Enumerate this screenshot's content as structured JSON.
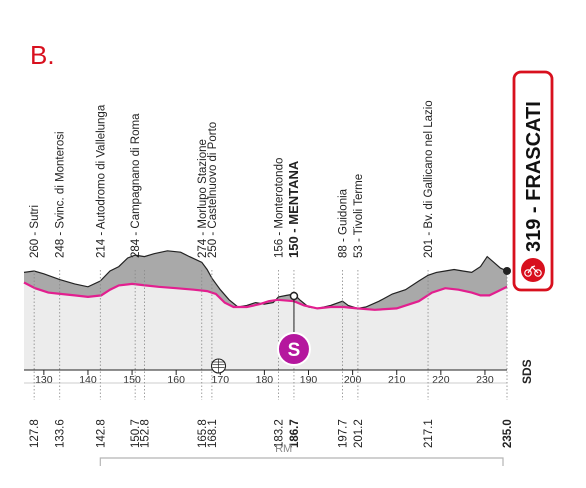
{
  "panel_label": "B.",
  "finish": {
    "altitude": "319",
    "name": "FRASCATI",
    "label": "319 - FRASCATI",
    "color": "#d8101e"
  },
  "colors": {
    "profile_fill": "#a9a9a9",
    "profile_fill_light": "#ececec",
    "route_line": "#e21f8f",
    "sprint_badge": "#b5179e",
    "finish_accent": "#d8101e"
  },
  "sprint_badge_letter": "S",
  "sds_label": "SDS",
  "province_label": "RM",
  "chart_data": {
    "type": "area",
    "title": "",
    "xlabel": "",
    "ylabel": "",
    "xlim": [
      125.5,
      235.0
    ],
    "x_ticks": [
      130,
      140,
      150,
      160,
      170,
      180,
      190,
      200,
      210,
      220,
      230
    ],
    "waypoints": [
      {
        "km": "127.8",
        "alt": "260",
        "name": "Sutri",
        "label": "260 - Sutri",
        "x": 127.8,
        "bold": false
      },
      {
        "km": "133.6",
        "alt": "248",
        "name": "Svinc. di Monterosi",
        "label": "248 - Svinc. di Monterosi",
        "x": 133.6,
        "bold": false
      },
      {
        "km": "142.8",
        "alt": "214",
        "name": "Autodromo di Vallelunga",
        "label": "214 - Autodromo di Vallelunga",
        "x": 142.8,
        "bold": false
      },
      {
        "km": "150.7",
        "alt": "284",
        "name": "Campagnano di Roma",
        "label": "284 - Campagnano di Roma",
        "x": 150.7,
        "bold": false
      },
      {
        "km": "152.8",
        "alt": "",
        "name": "",
        "label": "",
        "x": 152.8,
        "bold": false
      },
      {
        "km": "165.8",
        "alt": "274",
        "name": "Morlupo Stazione",
        "label": "274 - Morlupo Stazione",
        "x": 165.8,
        "bold": false
      },
      {
        "km": "168.1",
        "alt": "250",
        "name": "Castelnuovo di Porto",
        "label": "250 - Castelnuovo di Porto",
        "x": 168.1,
        "bold": false
      },
      {
        "km": "183.2",
        "alt": "156",
        "name": "Monterotondo",
        "label": "156 - Monterotondo",
        "x": 183.2,
        "bold": false
      },
      {
        "km": "186.7",
        "alt": "150",
        "name": "MENTANA",
        "label": "150 - MENTANA",
        "x": 186.7,
        "bold": true
      },
      {
        "km": "197.7",
        "alt": "88",
        "name": "Guidonia",
        "label": "88 - Guidonia",
        "x": 197.7,
        "bold": false
      },
      {
        "km": "201.2",
        "alt": "53",
        "name": "Tivoli Terme",
        "label": "53 - Tivoli Terme",
        "x": 201.2,
        "bold": false
      },
      {
        "km": "217.1",
        "alt": "201",
        "name": "Bv. di Gallicano nel Lazio",
        "label": "201 - Bv. di Gallicano nel Lazio",
        "x": 217.1,
        "bold": false
      },
      {
        "km": "235.0",
        "alt": "319",
        "name": "FRASCATI",
        "label": "",
        "x": 235.0,
        "bold": true
      }
    ],
    "series": [
      {
        "values": [
          [
            125.5,
            260
          ],
          [
            127.8,
            262
          ],
          [
            130,
            258
          ],
          [
            133.6,
            250
          ],
          [
            137,
            244
          ],
          [
            140,
            240
          ],
          [
            142.8,
            248
          ],
          [
            145,
            262
          ],
          [
            147,
            268
          ],
          [
            149,
            280
          ],
          [
            150.7,
            284
          ],
          [
            152.8,
            282
          ],
          [
            155,
            286
          ],
          [
            158,
            290
          ],
          [
            161,
            288
          ],
          [
            163,
            282
          ],
          [
            165.8,
            274
          ],
          [
            167,
            264
          ],
          [
            168.1,
            252
          ],
          [
            170,
            236
          ],
          [
            172,
            222
          ],
          [
            174,
            212
          ],
          [
            176,
            214
          ],
          [
            178,
            218
          ],
          [
            180,
            216
          ],
          [
            182,
            218
          ],
          [
            183.2,
            226
          ],
          [
            185,
            228
          ],
          [
            186.7,
            230
          ],
          [
            188,
            222
          ],
          [
            190,
            212
          ],
          [
            192,
            210
          ],
          [
            195,
            214
          ],
          [
            197.7,
            220
          ],
          [
            199,
            214
          ],
          [
            201.2,
            210
          ],
          [
            203,
            212
          ],
          [
            206,
            220
          ],
          [
            209,
            230
          ],
          [
            212,
            236
          ],
          [
            215,
            248
          ],
          [
            217.1,
            256
          ],
          [
            219,
            260
          ],
          [
            221,
            262
          ],
          [
            223,
            264
          ],
          [
            225,
            262
          ],
          [
            227,
            260
          ],
          [
            229,
            268
          ],
          [
            230.5,
            282
          ],
          [
            232,
            274
          ],
          [
            233.5,
            266
          ],
          [
            235,
            262
          ]
        ]
      }
    ],
    "route_line": [
      [
        125.5,
        246
      ],
      [
        128,
        238
      ],
      [
        131,
        232
      ],
      [
        134,
        230
      ],
      [
        137,
        228
      ],
      [
        140,
        226
      ],
      [
        143,
        228
      ],
      [
        145,
        236
      ],
      [
        147,
        242
      ],
      [
        150,
        244
      ],
      [
        153,
        242
      ],
      [
        156,
        240
      ],
      [
        160,
        238
      ],
      [
        164,
        236
      ],
      [
        167,
        234
      ],
      [
        169,
        230
      ],
      [
        171,
        218
      ],
      [
        173,
        212
      ],
      [
        176,
        212
      ],
      [
        179,
        216
      ],
      [
        181,
        220
      ],
      [
        183,
        222
      ],
      [
        186.7,
        220
      ],
      [
        189,
        214
      ],
      [
        192,
        210
      ],
      [
        195,
        212
      ],
      [
        198,
        212
      ],
      [
        201,
        210
      ],
      [
        205,
        208
      ],
      [
        210,
        210
      ],
      [
        215,
        220
      ],
      [
        218,
        232
      ],
      [
        221,
        238
      ],
      [
        224,
        236
      ],
      [
        227,
        232
      ],
      [
        229,
        228
      ],
      [
        231,
        228
      ],
      [
        233,
        234
      ],
      [
        235,
        240
      ]
    ],
    "sprint_km": 186.7
  }
}
